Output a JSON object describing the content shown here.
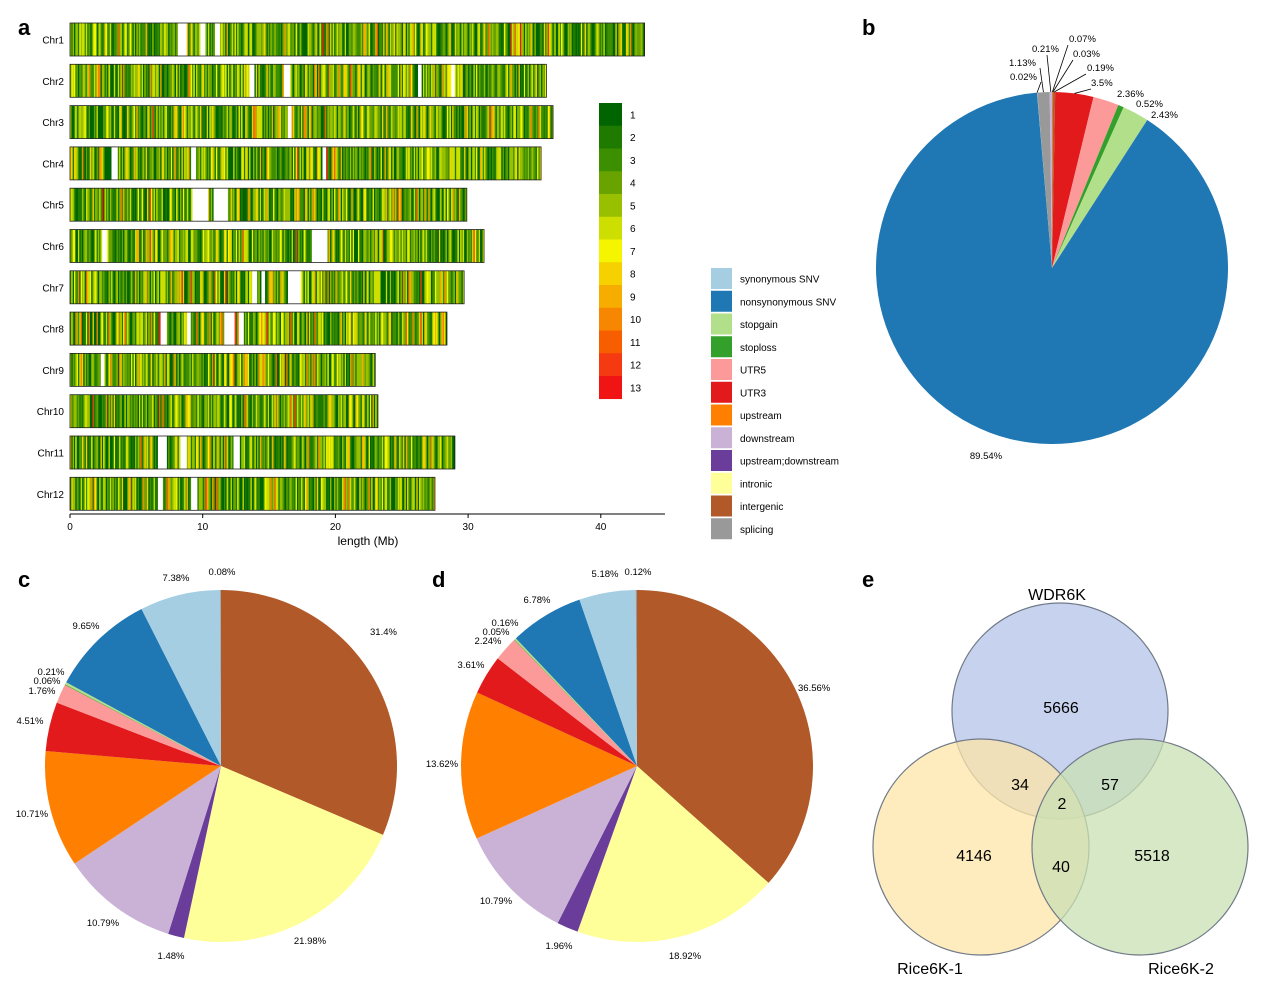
{
  "chart_data": [
    {
      "panel": "a",
      "type": "heatmap",
      "xlabel": "length (Mb)",
      "xticks": [
        0,
        10,
        20,
        30,
        40
      ],
      "xlim": [
        0,
        45
      ],
      "chromosomes": [
        {
          "name": "Chr1",
          "length": 43.3
        },
        {
          "name": "Chr2",
          "length": 35.9
        },
        {
          "name": "Chr3",
          "length": 36.4
        },
        {
          "name": "Chr4",
          "length": 35.5
        },
        {
          "name": "Chr5",
          "length": 29.9
        },
        {
          "name": "Chr6",
          "length": 31.2
        },
        {
          "name": "Chr7",
          "length": 29.7
        },
        {
          "name": "Chr8",
          "length": 28.4
        },
        {
          "name": "Chr9",
          "length": 23.0
        },
        {
          "name": "Chr10",
          "length": 23.2
        },
        {
          "name": "Chr11",
          "length": 29.0
        },
        {
          "name": "Chr12",
          "length": 27.5
        }
      ],
      "gaps": [
        [
          [
            8.1,
            8.8
          ],
          [
            9.8,
            10.2
          ],
          [
            10.9,
            11.3
          ]
        ],
        [
          [
            13.5,
            13.9
          ],
          [
            16.1,
            16.6
          ],
          [
            26.2,
            26.5
          ],
          [
            28.7,
            29.0
          ]
        ],
        [
          [
            16.4,
            16.7
          ]
        ],
        [
          [
            3.1,
            3.6
          ],
          [
            9.1,
            9.5
          ],
          [
            19.0,
            19.3
          ]
        ],
        [
          [
            9.2,
            10.4
          ],
          [
            10.8,
            11.9
          ]
        ],
        [
          [
            2.4,
            2.8
          ],
          [
            18.2,
            19.4
          ]
        ],
        [
          [
            13.7,
            14.1
          ],
          [
            14.4,
            14.7
          ],
          [
            16.4,
            17.4
          ]
        ],
        [
          [
            6.8,
            7.3
          ],
          [
            8.8,
            9.1
          ],
          [
            11.6,
            12.4
          ],
          [
            12.7,
            13.1
          ]
        ],
        [
          [
            2.3,
            2.6
          ]
        ],
        [],
        [
          [
            6.6,
            7.3
          ],
          [
            8.3,
            8.8
          ],
          [
            12.3,
            12.8
          ]
        ],
        [
          [
            6.6,
            7.0
          ],
          [
            9.1,
            9.6
          ]
        ]
      ],
      "legend_levels": [
        "1",
        "2",
        "3",
        "4",
        "5",
        "6",
        "7",
        "8",
        "9",
        "10",
        "11",
        "12",
        "13"
      ],
      "legend_colors": [
        "#006400",
        "#1f7a00",
        "#3c8f00",
        "#68a300",
        "#98bf00",
        "#cddf00",
        "#f5f500",
        "#f7d000",
        "#f7ad00",
        "#f78600",
        "#f75e00",
        "#f53a12",
        "#f01414"
      ]
    },
    {
      "panel": "b",
      "type": "pie",
      "categories": [
        "synonymous SNV",
        "nonsynonymous SNV",
        "stopgain",
        "stoploss",
        "UTR5",
        "UTR3",
        "upstream",
        "downstream",
        "upstream;downstream",
        "intronic",
        "intergenic",
        "splicing"
      ],
      "colors": [
        "#a6cee3",
        "#1f78b4",
        "#b2df8a",
        "#33a02c",
        "#fb9a99",
        "#e31a1c",
        "#ff7f00",
        "#cab2d6",
        "#6a3d9a",
        "#ffff99",
        "#b15928",
        "#999999"
      ],
      "slices": [
        {
          "label": "0.07%",
          "value": 0.07,
          "color": "#ff7f00"
        },
        {
          "label": "0.03%",
          "value": 0.03,
          "color": "#6a3d9a"
        },
        {
          "label": "0.19%",
          "value": 0.19,
          "color": "#b15928"
        },
        {
          "label": "3.5%",
          "value": 3.5,
          "color": "#e31a1c"
        },
        {
          "label": "2.36%",
          "value": 2.36,
          "color": "#fb9a99"
        },
        {
          "label": "0.52%",
          "value": 0.52,
          "color": "#33a02c"
        },
        {
          "label": "2.43%",
          "value": 2.43,
          "color": "#b2df8a"
        },
        {
          "label": "89.54%",
          "value": 89.54,
          "color": "#1f78b4"
        },
        {
          "label": "0.02%",
          "value": 0.02,
          "color": "#a6cee3"
        },
        {
          "label": "1.13%",
          "value": 1.13,
          "color": "#999999"
        },
        {
          "label": "0.21%",
          "value": 0.21,
          "color": "#cab2d6"
        }
      ]
    },
    {
      "panel": "c",
      "type": "pie",
      "slices": [
        {
          "label": "31.4%",
          "value": 31.4,
          "color": "#b15928"
        },
        {
          "label": "21.98%",
          "value": 21.98,
          "color": "#ffff99"
        },
        {
          "label": "1.48%",
          "value": 1.48,
          "color": "#6a3d9a"
        },
        {
          "label": "10.79%",
          "value": 10.79,
          "color": "#cab2d6"
        },
        {
          "label": "10.71%",
          "value": 10.71,
          "color": "#ff7f00"
        },
        {
          "label": "4.51%",
          "value": 4.51,
          "color": "#e31a1c"
        },
        {
          "label": "1.76%",
          "value": 1.76,
          "color": "#fb9a99"
        },
        {
          "label": "0.06%",
          "value": 0.06,
          "color": "#33a02c"
        },
        {
          "label": "0.21%",
          "value": 0.21,
          "color": "#b2df8a"
        },
        {
          "label": "9.65%",
          "value": 9.65,
          "color": "#1f78b4"
        },
        {
          "label": "7.38%",
          "value": 7.38,
          "color": "#a6cee3"
        },
        {
          "label": "0.08%",
          "value": 0.08,
          "color": "#999999"
        }
      ]
    },
    {
      "panel": "d",
      "type": "pie",
      "slices": [
        {
          "label": "36.56%",
          "value": 36.56,
          "color": "#b15928"
        },
        {
          "label": "18.92%",
          "value": 18.92,
          "color": "#ffff99"
        },
        {
          "label": "1.96%",
          "value": 1.96,
          "color": "#6a3d9a"
        },
        {
          "label": "10.79%",
          "value": 10.79,
          "color": "#cab2d6"
        },
        {
          "label": "13.62%",
          "value": 13.62,
          "color": "#ff7f00"
        },
        {
          "label": "3.61%",
          "value": 3.61,
          "color": "#e31a1c"
        },
        {
          "label": "2.24%",
          "value": 2.24,
          "color": "#fb9a99"
        },
        {
          "label": "0.05%",
          "value": 0.05,
          "color": "#33a02c"
        },
        {
          "label": "0.16%",
          "value": 0.16,
          "color": "#b2df8a"
        },
        {
          "label": "6.78%",
          "value": 6.78,
          "color": "#1f78b4"
        },
        {
          "label": "5.18%",
          "value": 5.18,
          "color": "#a6cee3"
        },
        {
          "label": "0.12%",
          "value": 0.12,
          "color": "#999999"
        }
      ]
    },
    {
      "panel": "e",
      "type": "venn",
      "sets": [
        "WDR6K",
        "Rice6K-1",
        "Rice6K-2"
      ],
      "set_colors": [
        "#b4c4e8",
        "#fde4a8",
        "#c9e0b3"
      ],
      "regions": {
        "WDR6K_only": 5666,
        "Rice6K1_only": 4146,
        "Rice6K2_only": 5518,
        "WDR6K_Rice6K1": 34,
        "WDR6K_Rice6K2": 57,
        "Rice6K1_Rice6K2": 40,
        "all": 2
      }
    }
  ],
  "panel_letters": [
    "a",
    "b",
    "c",
    "d",
    "e"
  ]
}
